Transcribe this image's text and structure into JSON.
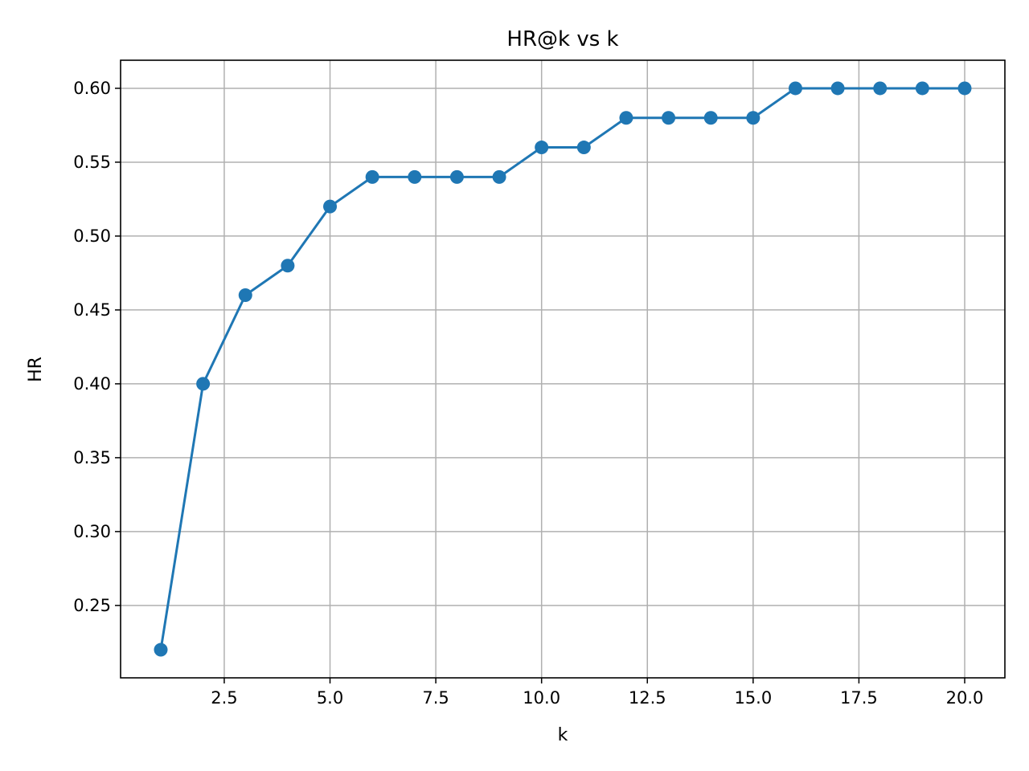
{
  "chart_data": {
    "type": "line",
    "title": "HR@k vs k",
    "xlabel": "k",
    "ylabel": "HR",
    "x": [
      1,
      2,
      3,
      4,
      5,
      6,
      7,
      8,
      9,
      10,
      11,
      12,
      13,
      14,
      15,
      16,
      17,
      18,
      19,
      20
    ],
    "series": [
      {
        "values": [
          0.22,
          0.4,
          0.46,
          0.48,
          0.52,
          0.54,
          0.54,
          0.54,
          0.54,
          0.56,
          0.56,
          0.58,
          0.58,
          0.58,
          0.58,
          0.6,
          0.6,
          0.6,
          0.6,
          0.6
        ],
        "color": "#1f77b4",
        "marker": "circle"
      }
    ],
    "xlim": [
      0.05,
      20.95
    ],
    "ylim": [
      0.201,
      0.619
    ],
    "xticks": [
      2.5,
      5.0,
      7.5,
      10.0,
      12.5,
      15.0,
      17.5,
      20.0
    ],
    "xtick_labels": [
      "2.5",
      "5.0",
      "7.5",
      "10.0",
      "12.5",
      "15.0",
      "17.5",
      "20.0"
    ],
    "yticks": [
      0.25,
      0.3,
      0.35,
      0.4,
      0.45,
      0.5,
      0.55,
      0.6
    ],
    "ytick_labels": [
      "0.25",
      "0.30",
      "0.35",
      "0.40",
      "0.45",
      "0.50",
      "0.55",
      "0.60"
    ],
    "grid": true,
    "legend": "none"
  }
}
